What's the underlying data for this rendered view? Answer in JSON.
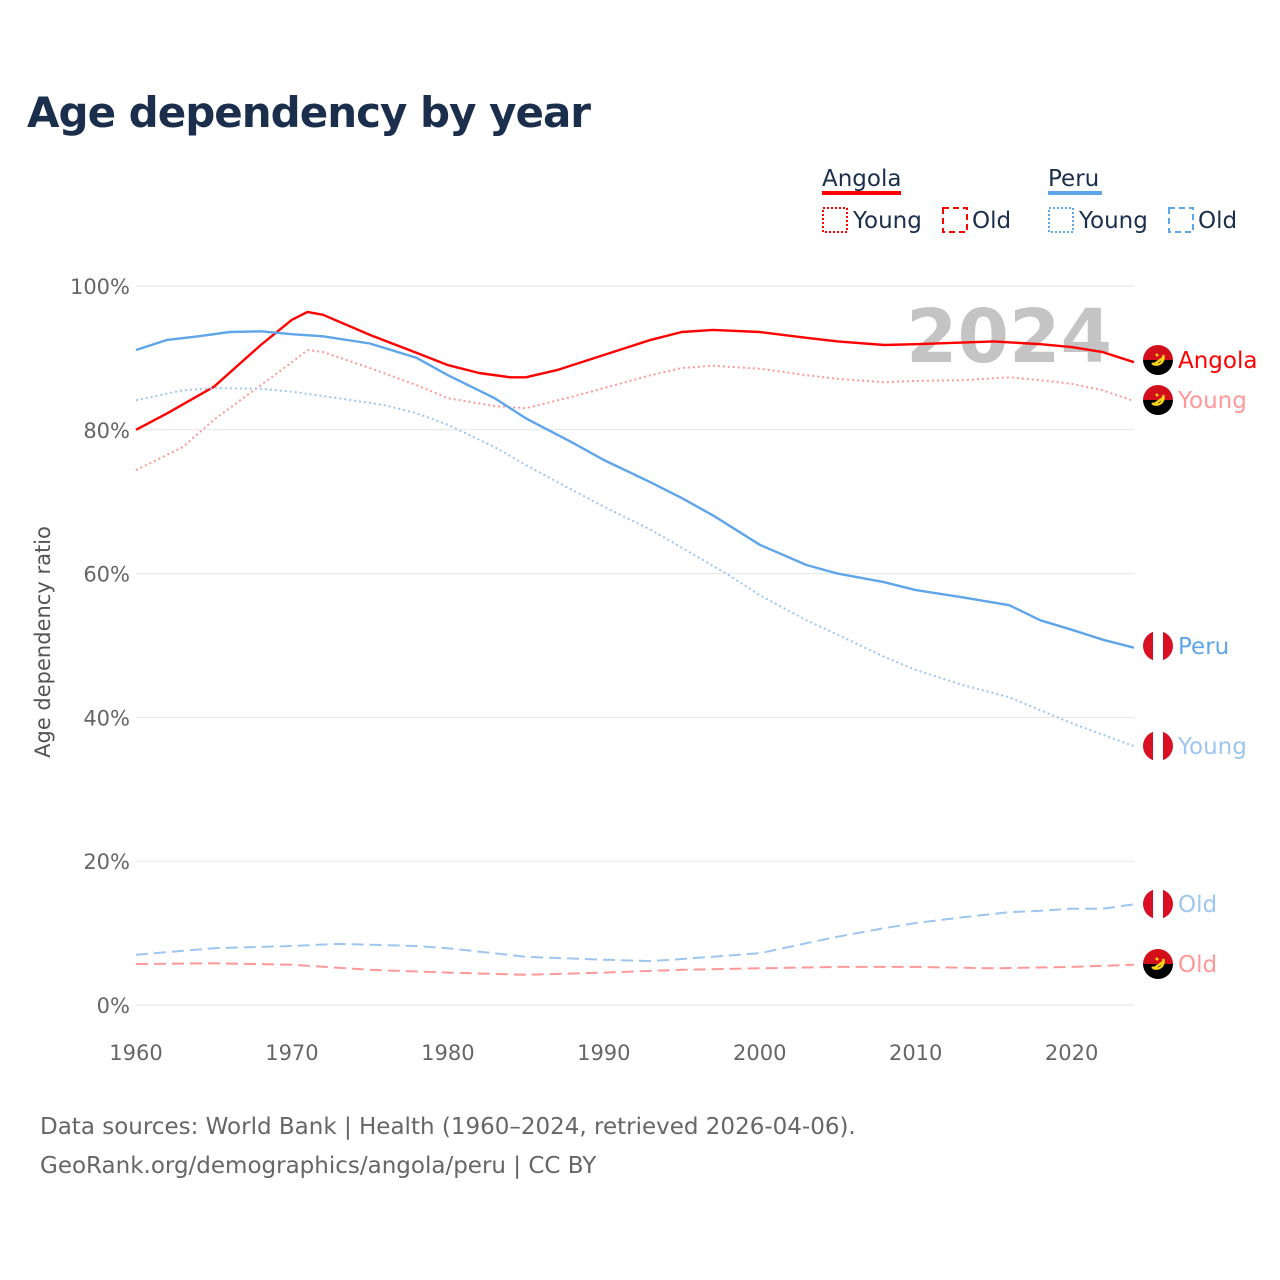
{
  "title": "Age dependency by year",
  "year_watermark": "2024",
  "legend": {
    "groups": [
      {
        "name": "Angola",
        "color": "#ff0000",
        "young_label": "Young",
        "old_label": "Old"
      },
      {
        "name": "Peru",
        "color": "#5fa5ea",
        "young_label": "Young",
        "old_label": "Old"
      }
    ]
  },
  "source": {
    "line1": "Data sources: World Bank | Health (1960–2024, retrieved 2026-04-06).",
    "line2": "GeoRank.org/demographics/angola/peru | CC BY"
  },
  "chart_data": {
    "type": "line",
    "title": "Age dependency by year",
    "xlabel": "",
    "ylabel": "Age dependency ratio",
    "xlim": [
      1960,
      2024
    ],
    "ylim": [
      0,
      100
    ],
    "x_ticks": [
      "1960",
      "1970",
      "1980",
      "1990",
      "2000",
      "2010",
      "2020"
    ],
    "y_ticks": [
      "0%",
      "20%",
      "40%",
      "60%",
      "80%",
      "100%"
    ],
    "grid": true,
    "legend_placement": "top-right",
    "series": [
      {
        "name": "Angola",
        "end_label": "Angola",
        "country": "angola",
        "style": "solid",
        "color": "#ff0000",
        "points": [
          [
            1960,
            80.0
          ],
          [
            1962,
            82.3
          ],
          [
            1965,
            86
          ],
          [
            1968,
            91.8
          ],
          [
            1970,
            95.3
          ],
          [
            1971,
            96.4
          ],
          [
            1972,
            96
          ],
          [
            1975,
            93.2
          ],
          [
            1978,
            90.7
          ],
          [
            1980,
            89
          ],
          [
            1982,
            87.9
          ],
          [
            1984,
            87.3
          ],
          [
            1985,
            87.3
          ],
          [
            1987,
            88.3
          ],
          [
            1990,
            90.4
          ],
          [
            1993,
            92.5
          ],
          [
            1995,
            93.6
          ],
          [
            1997,
            93.9
          ],
          [
            2000,
            93.6
          ],
          [
            2003,
            92.8
          ],
          [
            2005,
            92.3
          ],
          [
            2008,
            91.8
          ],
          [
            2010,
            91.9
          ],
          [
            2015,
            92.3
          ],
          [
            2018,
            91.9
          ],
          [
            2020,
            91.5
          ],
          [
            2022,
            90.8
          ],
          [
            2024,
            89.4
          ]
        ]
      },
      {
        "name": "Angola Young",
        "end_label": "Young",
        "country": "angola",
        "style": "dotted",
        "color": "#ff9999",
        "points": [
          [
            1960,
            74.4
          ],
          [
            1963,
            77.6
          ],
          [
            1965,
            81.4
          ],
          [
            1968,
            86.2
          ],
          [
            1970,
            89.4
          ],
          [
            1971,
            91.1
          ],
          [
            1972,
            90.8
          ],
          [
            1975,
            88.6
          ],
          [
            1978,
            86.2
          ],
          [
            1980,
            84.4
          ],
          [
            1983,
            83.3
          ],
          [
            1985,
            83
          ],
          [
            1988,
            84.6
          ],
          [
            1990,
            85.8
          ],
          [
            1993,
            87.6
          ],
          [
            1995,
            88.6
          ],
          [
            1997,
            88.9
          ],
          [
            2000,
            88.5
          ],
          [
            2003,
            87.6
          ],
          [
            2005,
            87.1
          ],
          [
            2008,
            86.6
          ],
          [
            2010,
            86.8
          ],
          [
            2013,
            86.9
          ],
          [
            2016,
            87.3
          ],
          [
            2018,
            86.9
          ],
          [
            2020,
            86.4
          ],
          [
            2022,
            85.5
          ],
          [
            2024,
            84.0
          ]
        ]
      },
      {
        "name": "Angola Old",
        "end_label": "Old",
        "country": "angola",
        "style": "dashed",
        "color": "#ff9999",
        "points": [
          [
            1960,
            5.7
          ],
          [
            1965,
            5.8
          ],
          [
            1970,
            5.6
          ],
          [
            1975,
            4.9
          ],
          [
            1980,
            4.5
          ],
          [
            1985,
            4.2
          ],
          [
            1990,
            4.5
          ],
          [
            1995,
            4.9
          ],
          [
            2000,
            5.1
          ],
          [
            2005,
            5.3
          ],
          [
            2010,
            5.3
          ],
          [
            2015,
            5.1
          ],
          [
            2020,
            5.3
          ],
          [
            2024,
            5.6
          ]
        ]
      },
      {
        "name": "Peru",
        "end_label": "Peru",
        "country": "peru",
        "style": "solid",
        "color": "#5fa5ea",
        "points": [
          [
            1960,
            91.1
          ],
          [
            1962,
            92.5
          ],
          [
            1964,
            93
          ],
          [
            1966,
            93.6
          ],
          [
            1968,
            93.7
          ],
          [
            1970,
            93.3
          ],
          [
            1972,
            93
          ],
          [
            1975,
            92
          ],
          [
            1978,
            90
          ],
          [
            1980,
            87.6
          ],
          [
            1983,
            84.4
          ],
          [
            1985,
            81.6
          ],
          [
            1988,
            78.2
          ],
          [
            1990,
            75.8
          ],
          [
            1993,
            72.7
          ],
          [
            1995,
            70.5
          ],
          [
            1997,
            68.1
          ],
          [
            2000,
            64
          ],
          [
            2003,
            61.2
          ],
          [
            2005,
            60
          ],
          [
            2008,
            58.8
          ],
          [
            2010,
            57.7
          ],
          [
            2013,
            56.7
          ],
          [
            2016,
            55.6
          ],
          [
            2018,
            53.5
          ],
          [
            2020,
            52.2
          ],
          [
            2022,
            50.8
          ],
          [
            2024,
            49.7
          ]
        ]
      },
      {
        "name": "Peru Young",
        "end_label": "Young",
        "country": "peru",
        "style": "dotted",
        "color": "#9ec6f0",
        "points": [
          [
            1960,
            84.1
          ],
          [
            1963,
            85.5
          ],
          [
            1965,
            85.8
          ],
          [
            1968,
            85.7
          ],
          [
            1970,
            85.3
          ],
          [
            1973,
            84.4
          ],
          [
            1976,
            83.4
          ],
          [
            1978,
            82.3
          ],
          [
            1980,
            80.7
          ],
          [
            1983,
            77.6
          ],
          [
            1985,
            75.1
          ],
          [
            1988,
            71.6
          ],
          [
            1990,
            69.3
          ],
          [
            1993,
            66.1
          ],
          [
            1995,
            63.6
          ],
          [
            1998,
            59.8
          ],
          [
            2000,
            57
          ],
          [
            2003,
            53.5
          ],
          [
            2005,
            51.5
          ],
          [
            2008,
            48.4
          ],
          [
            2010,
            46.6
          ],
          [
            2013,
            44.5
          ],
          [
            2016,
            42.8
          ],
          [
            2018,
            41
          ],
          [
            2020,
            39.2
          ],
          [
            2022,
            37.6
          ],
          [
            2024,
            36.0
          ]
        ]
      },
      {
        "name": "Peru Old",
        "end_label": "Old",
        "country": "peru",
        "style": "dashed",
        "color": "#9ec6f0",
        "points": [
          [
            1960,
            7
          ],
          [
            1965,
            7.9
          ],
          [
            1970,
            8.2
          ],
          [
            1973,
            8.5
          ],
          [
            1978,
            8.2
          ],
          [
            1980,
            7.9
          ],
          [
            1985,
            6.7
          ],
          [
            1990,
            6.3
          ],
          [
            1993,
            6.1
          ],
          [
            1995,
            6.4
          ],
          [
            2000,
            7.2
          ],
          [
            2003,
            8.6
          ],
          [
            2005,
            9.5
          ],
          [
            2008,
            10.7
          ],
          [
            2010,
            11.4
          ],
          [
            2013,
            12.2
          ],
          [
            2016,
            12.9
          ],
          [
            2018,
            13.1
          ],
          [
            2020,
            13.4
          ],
          [
            2022,
            13.4
          ],
          [
            2024,
            14.0
          ]
        ]
      }
    ]
  }
}
